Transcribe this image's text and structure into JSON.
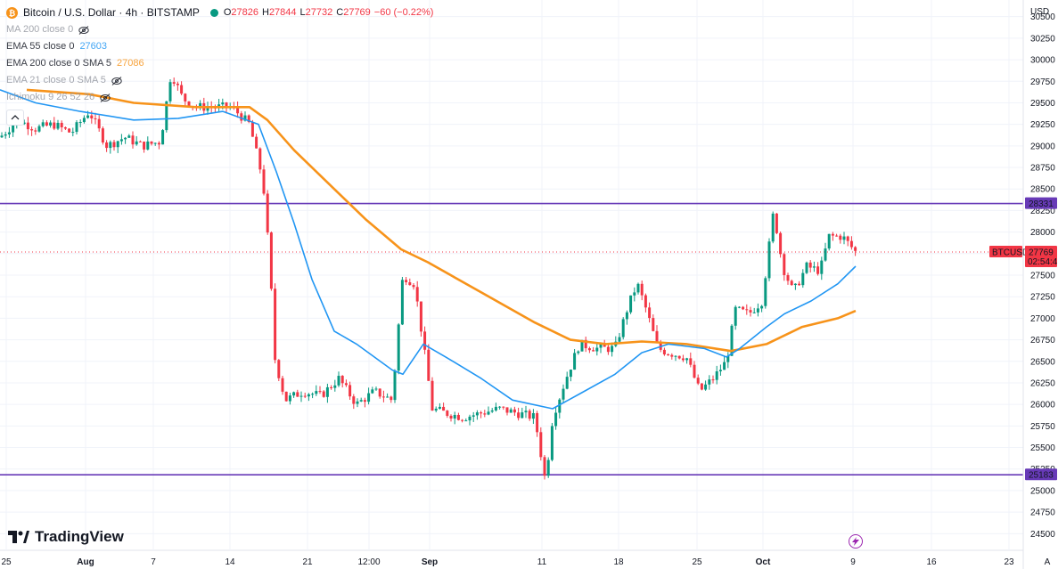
{
  "header": {
    "symbol_title": "Bitcoin / U.S. Dollar · 4h · BITSTAMP",
    "ohlc": [
      {
        "k": "O",
        "v": "27826"
      },
      {
        "k": "H",
        "v": "27844"
      },
      {
        "k": "L",
        "v": "27732"
      },
      {
        "k": "C",
        "v": "27769"
      },
      {
        "k": "",
        "v": "−60 (−0.22%)"
      }
    ]
  },
  "indicators": [
    {
      "label": "MA 200 close 0",
      "value": "",
      "color": "#9598a1",
      "hidden": true
    },
    {
      "label": "EMA 55 close 0",
      "value": "27603",
      "color": "#2196f3",
      "hidden": false
    },
    {
      "label": "EMA 200 close 0 SMA 5",
      "value": "27086",
      "color": "#f7931a",
      "hidden": false
    },
    {
      "label": "EMA 21 close 0 SMA 5",
      "value": "",
      "color": "#9598a1",
      "hidden": true
    },
    {
      "label": "Ichimoku 9 26 52 26",
      "value": "",
      "color": "#9598a1",
      "hidden": true
    }
  ],
  "branding": {
    "logo_text": "TradingView"
  },
  "colors": {
    "up": "#089981",
    "down": "#f23645",
    "ema55": "#2196f3",
    "ema200": "#f7931a",
    "hline": "#673ab7",
    "badge": "#f23645"
  },
  "chart_data": {
    "type": "candlestick",
    "currency_label": "USD",
    "ylim": [
      24400,
      30600
    ],
    "y_ticks": [
      24500,
      24750,
      25000,
      25250,
      25500,
      25750,
      26000,
      26250,
      26500,
      26750,
      27000,
      27250,
      27500,
      27750,
      28000,
      28250,
      28500,
      28750,
      29000,
      29250,
      29500,
      29750,
      30000,
      30250,
      30500
    ],
    "x_ticks": [
      "25",
      "Aug",
      "7",
      "14",
      "21",
      "12:00",
      "Sep",
      "11",
      "18",
      "25",
      "Oct",
      "9",
      "16",
      "23"
    ],
    "horizontal_levels": [
      {
        "label": "28331",
        "value": 28331
      },
      {
        "label": "25183",
        "value": 25183
      }
    ],
    "last_price": {
      "symbol": "BTCUSD",
      "value": 27769,
      "label": "27769",
      "countdown": "02:54:4"
    },
    "ema55_path": [
      [
        0,
        29650
      ],
      [
        40,
        29500
      ],
      [
        90,
        29400
      ],
      [
        150,
        29300
      ],
      [
        200,
        29320
      ],
      [
        250,
        29400
      ],
      [
        290,
        29250
      ],
      [
        310,
        28700
      ],
      [
        330,
        28100
      ],
      [
        350,
        27450
      ],
      [
        375,
        26850
      ],
      [
        400,
        26700
      ],
      [
        440,
        26400
      ],
      [
        452,
        26350
      ],
      [
        475,
        26700
      ],
      [
        500,
        26550
      ],
      [
        540,
        26300
      ],
      [
        575,
        26050
      ],
      [
        620,
        25950
      ],
      [
        650,
        26120
      ],
      [
        690,
        26350
      ],
      [
        720,
        26600
      ],
      [
        750,
        26700
      ],
      [
        790,
        26650
      ],
      [
        815,
        26550
      ],
      [
        830,
        26650
      ],
      [
        860,
        26900
      ],
      [
        880,
        27050
      ],
      [
        910,
        27200
      ],
      [
        940,
        27400
      ],
      [
        960,
        27603
      ]
    ],
    "ema200_path": [
      [
        30,
        29650
      ],
      [
        100,
        29600
      ],
      [
        150,
        29500
      ],
      [
        220,
        29450
      ],
      [
        280,
        29450
      ],
      [
        300,
        29300
      ],
      [
        330,
        28950
      ],
      [
        370,
        28550
      ],
      [
        410,
        28150
      ],
      [
        450,
        27800
      ],
      [
        480,
        27650
      ],
      [
        540,
        27300
      ],
      [
        600,
        26950
      ],
      [
        640,
        26750
      ],
      [
        680,
        26700
      ],
      [
        720,
        26730
      ],
      [
        770,
        26700
      ],
      [
        820,
        26620
      ],
      [
        860,
        26700
      ],
      [
        900,
        26900
      ],
      [
        940,
        27000
      ],
      [
        960,
        27086
      ]
    ],
    "price_path": [
      [
        0,
        29100
      ],
      [
        20,
        29300
      ],
      [
        40,
        29200
      ],
      [
        60,
        29250
      ],
      [
        80,
        29150
      ],
      [
        100,
        29400
      ],
      [
        120,
        29000
      ],
      [
        140,
        29100
      ],
      [
        160,
        29000
      ],
      [
        180,
        29050
      ],
      [
        192,
        29850
      ],
      [
        205,
        29550
      ],
      [
        220,
        29450
      ],
      [
        240,
        29450
      ],
      [
        260,
        29450
      ],
      [
        280,
        29250
      ],
      [
        295,
        28600
      ],
      [
        303,
        27600
      ],
      [
        308,
        26550
      ],
      [
        320,
        26050
      ],
      [
        340,
        26150
      ],
      [
        360,
        26100
      ],
      [
        380,
        26300
      ],
      [
        400,
        26000
      ],
      [
        420,
        26150
      ],
      [
        440,
        26050
      ],
      [
        452,
        27500
      ],
      [
        465,
        27400
      ],
      [
        475,
        26700
      ],
      [
        485,
        25950
      ],
      [
        500,
        25900
      ],
      [
        520,
        25850
      ],
      [
        540,
        25900
      ],
      [
        560,
        25950
      ],
      [
        580,
        25900
      ],
      [
        600,
        25850
      ],
      [
        612,
        25100
      ],
      [
        620,
        25850
      ],
      [
        635,
        26300
      ],
      [
        650,
        26700
      ],
      [
        670,
        26650
      ],
      [
        690,
        26650
      ],
      [
        705,
        27150
      ],
      [
        715,
        27400
      ],
      [
        725,
        27100
      ],
      [
        738,
        26650
      ],
      [
        750,
        26600
      ],
      [
        770,
        26550
      ],
      [
        785,
        26150
      ],
      [
        800,
        26300
      ],
      [
        815,
        26500
      ],
      [
        825,
        27100
      ],
      [
        840,
        27050
      ],
      [
        855,
        27200
      ],
      [
        868,
        28250
      ],
      [
        878,
        27600
      ],
      [
        890,
        27300
      ],
      [
        905,
        27600
      ],
      [
        920,
        27550
      ],
      [
        930,
        27950
      ],
      [
        945,
        27950
      ],
      [
        960,
        27769
      ]
    ]
  }
}
